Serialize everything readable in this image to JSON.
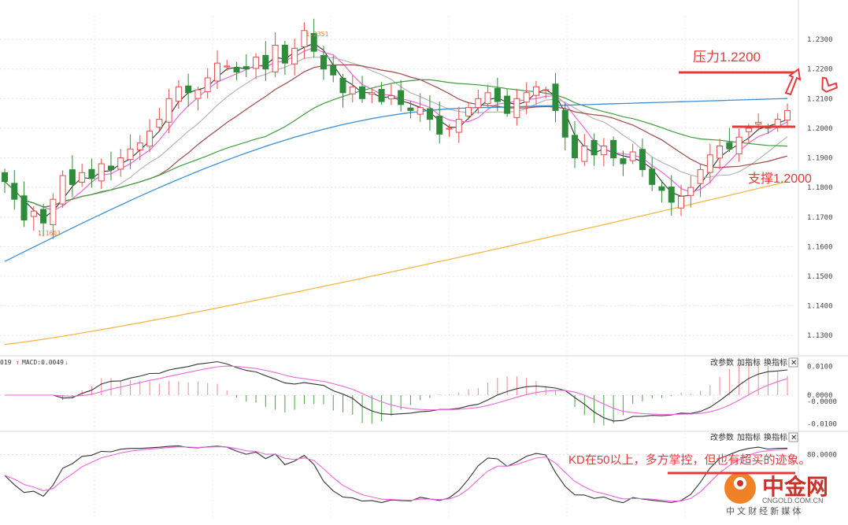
{
  "chart_data": {
    "type": "candlestick",
    "main": {
      "price_ticks": [
        "1.2300",
        "1.2200",
        "1.2100",
        "1.2000",
        "1.1900",
        "1.1800",
        "1.1700",
        "1.1600",
        "1.1500",
        "1.1400",
        "1.1300"
      ],
      "ylim": [
        1.125,
        1.238
      ],
      "high_label": "1.2351",
      "low_label": "1.1603",
      "close_path": [
        1.182,
        1.176,
        1.169,
        1.172,
        1.168,
        1.176,
        1.184,
        1.181,
        1.185,
        1.183,
        1.188,
        1.186,
        1.19,
        1.193,
        1.195,
        1.199,
        1.203,
        1.21,
        1.214,
        1.212,
        1.213,
        1.217,
        1.222,
        1.221,
        1.219,
        1.22,
        1.224,
        1.22,
        1.228,
        1.222,
        1.227,
        1.233,
        1.226,
        1.22,
        1.218,
        1.212,
        1.214,
        1.21,
        1.212,
        1.209,
        1.211,
        1.208,
        1.206,
        1.207,
        1.203,
        1.198,
        1.2,
        1.203,
        1.207,
        1.21,
        1.212,
        1.209,
        1.205,
        1.21,
        1.212,
        1.214,
        1.213,
        1.206,
        1.197,
        1.19,
        1.194,
        1.191,
        1.194,
        1.19,
        1.188,
        1.192,
        1.186,
        1.181,
        1.179,
        1.175,
        1.177,
        1.18,
        1.186,
        1.191,
        1.194,
        1.193,
        1.197,
        1.2,
        1.202,
        1.2,
        1.203,
        1.206
      ],
      "annotations": {
        "resistance": "压力1.2200",
        "support": "支撑1.2000"
      },
      "levels": {
        "resistance": 1.22,
        "support": 1.2
      }
    },
    "macd": {
      "header_left": "019",
      "header_label": "MACD:0.0049",
      "ticks": [
        "0.0100",
        "0.0000",
        "-0.0000",
        "-0.0100"
      ]
    },
    "kd": {
      "ticks": [
        "80.0000"
      ],
      "annotation": "KD在50以上，多方掌控，但也有超买的迹象。"
    },
    "colors": {
      "up": "#e84b4b",
      "down": "#2e8b3a",
      "annotation": "#e8383d",
      "ma_pink": "#ee66dd",
      "ma_black": "#222222",
      "ma_gray": "#b5b5b5",
      "ma_brown": "#a04848",
      "ma_green": "#3e9e3e",
      "ma_blue": "#3a8fd8",
      "ma_orange": "#f5b84a"
    }
  },
  "toolbar": {
    "buttons": [
      "改参数",
      "加指标",
      "换指标"
    ],
    "close_glyph": "✕"
  },
  "watermark": {
    "brand": "中金网",
    "domain": "CNGOLD.COM.CN",
    "tagline": "中 文 财 经 新 媒 体"
  }
}
